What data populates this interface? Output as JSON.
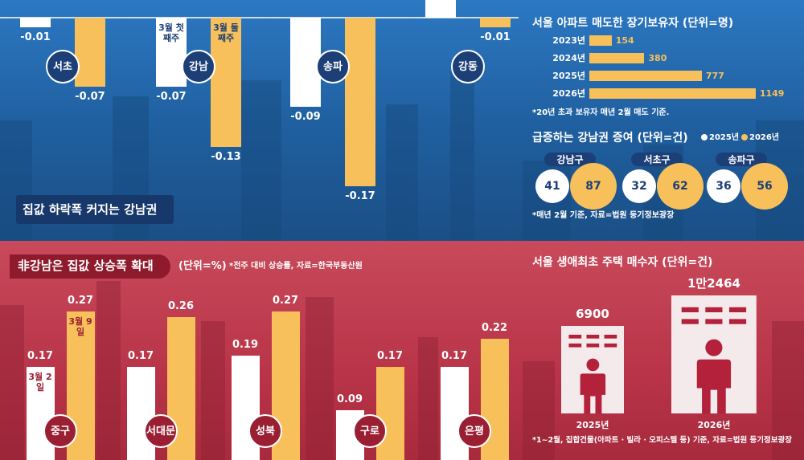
{
  "chart_data": [
    {
      "type": "bar",
      "title": "집값 하락폭 커지는 강남권",
      "categories": [
        "서초",
        "강남",
        "송파",
        "강동"
      ],
      "series": [
        {
          "name": "3월 첫째주",
          "color": "#ffffff",
          "values": [
            -0.01,
            -0.07,
            -0.09,
            0.02
          ]
        },
        {
          "name": "3월 둘째주",
          "color": "#f7c05a",
          "values": [
            -0.07,
            -0.13,
            -0.17,
            -0.01
          ]
        }
      ]
    },
    {
      "type": "hbar",
      "title": "서울 아파트 매도한 장기보유자 (단위=명)",
      "categories": [
        "2023년",
        "2024년",
        "2025년",
        "2026년"
      ],
      "values": [
        154,
        380,
        777,
        1149
      ],
      "color": "#f7c05a",
      "note": "*20년 초과 보유자 매년 2월 매도 기준."
    },
    {
      "type": "bubble",
      "title": "급증하는 강남권 증여 (단위=건)",
      "categories": [
        "강남구",
        "서초구",
        "송파구"
      ],
      "series": [
        {
          "name": "2025년",
          "color": "#ffffff",
          "values": [
            41,
            32,
            36
          ]
        },
        {
          "name": "2026년",
          "color": "#f7c05a",
          "values": [
            87,
            62,
            56
          ]
        }
      ],
      "note": "*매년 2월 기준, 자료=법원 등기정보광장"
    },
    {
      "type": "bar",
      "title": "非강남은 집값 상승폭 확대",
      "unit": "(단위=%)",
      "note": "*전주 대비 상승률, 자료=한국부동산원",
      "categories": [
        "중구",
        "서대문",
        "성북",
        "구로",
        "은평"
      ],
      "series": [
        {
          "name": "3월 2일",
          "color": "#ffffff",
          "values": [
            0.17,
            0.17,
            0.19,
            0.09,
            0.17
          ]
        },
        {
          "name": "3월 9일",
          "color": "#f7c05a",
          "values": [
            0.27,
            0.26,
            0.27,
            0.17,
            0.22
          ]
        }
      ]
    },
    {
      "type": "pictogram",
      "title": "서울 생애최초 주택 매수자 (단위=건)",
      "categories": [
        "2025년",
        "2026년"
      ],
      "values": [
        6900,
        12464
      ],
      "value_labels": [
        "6900",
        "1만2464"
      ],
      "color": "#b3213a",
      "note": "*1~2월, 집합건물(아파트 · 빌라 · 오피스텔 등) 기준, 자료=법원 등기정보광장"
    }
  ]
}
